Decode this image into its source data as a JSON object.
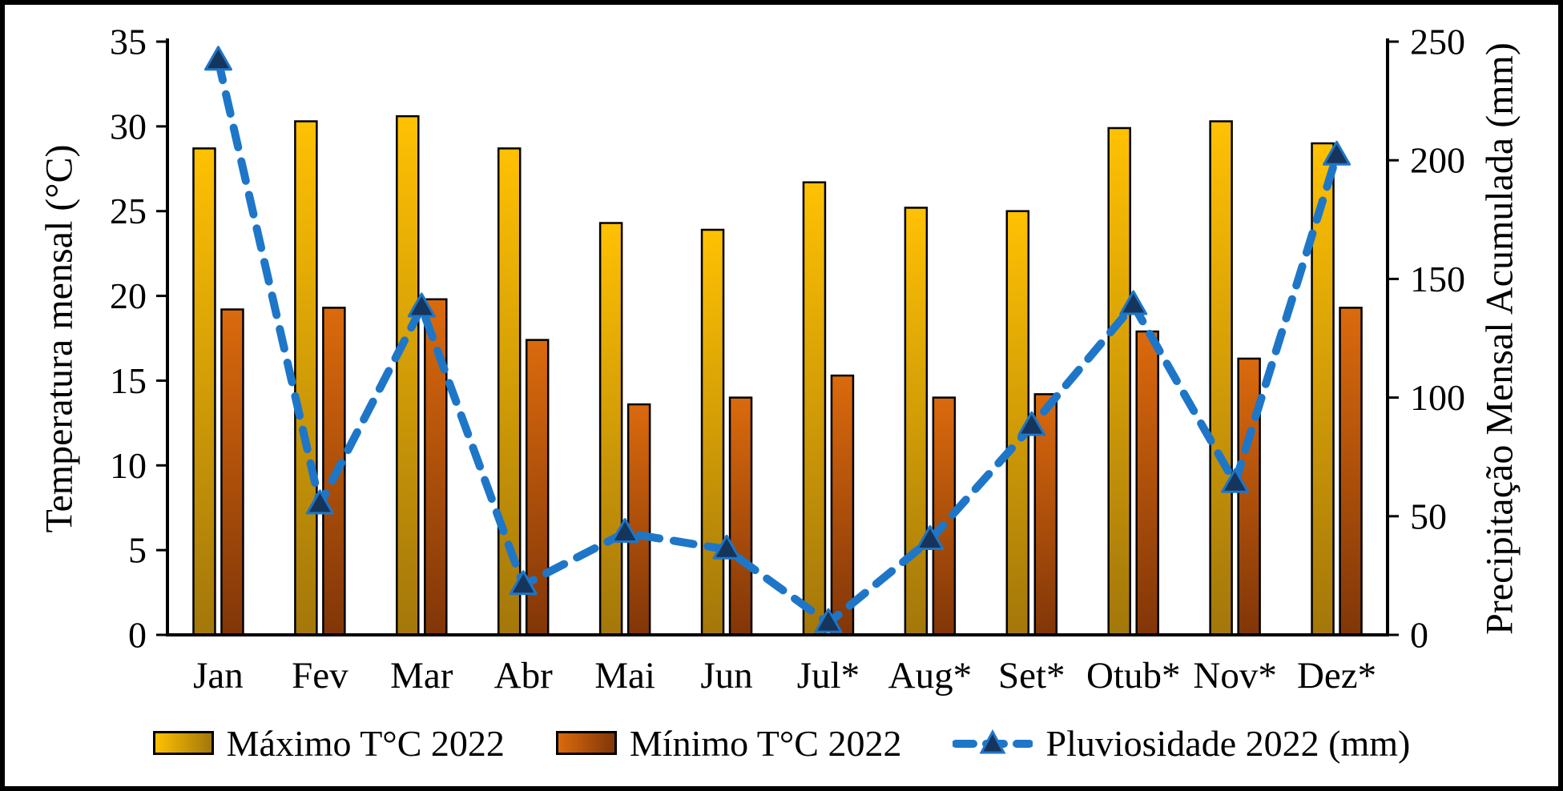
{
  "chart_data": {
    "type": "combo (bar + line)",
    "categories": [
      "Jan",
      "Fev",
      "Mar",
      "Abr",
      "Mai",
      "Jun",
      "Jul*",
      "Aug*",
      "Set*",
      "Otub*",
      "Nov*",
      "Dez*"
    ],
    "series": [
      {
        "name": "Máximo T°C 2022",
        "type": "bar",
        "axis": "left",
        "values": [
          28.7,
          30.3,
          30.6,
          28.7,
          24.3,
          23.9,
          26.7,
          25.2,
          25.0,
          29.9,
          30.3,
          29.0
        ],
        "fill_top": "#FFC103",
        "fill_bottom": "#A3770A",
        "stroke": "#000000"
      },
      {
        "name": "Mínimo T°C 2022",
        "type": "bar",
        "axis": "left",
        "values": [
          19.2,
          19.3,
          19.8,
          17.4,
          13.6,
          14.0,
          15.3,
          14.0,
          14.2,
          17.9,
          16.3,
          19.3
        ],
        "fill_top": "#DB6A0D",
        "fill_bottom": "#813608",
        "stroke": "#000000"
      },
      {
        "name": "Pluviosidade 2022 (mm)",
        "type": "line",
        "axis": "right",
        "values": [
          242,
          55,
          138,
          21,
          43,
          36,
          5,
          40,
          88,
          139,
          64,
          202
        ],
        "color": "#1E76C8",
        "line_style": "dashed",
        "marker": "triangle",
        "marker_color": "#16355C"
      }
    ],
    "left_axis": {
      "title": "Temperatura mensal (°C)",
      "min": 0,
      "max": 35,
      "step": 5
    },
    "right_axis": {
      "title": "Precipitação Mensal Acumulada (mm)",
      "min": 0,
      "max": 250,
      "step": 50
    },
    "legend_position": "bottom",
    "grid": false,
    "background": "#FFFFFF",
    "frame_border": "#000000"
  }
}
